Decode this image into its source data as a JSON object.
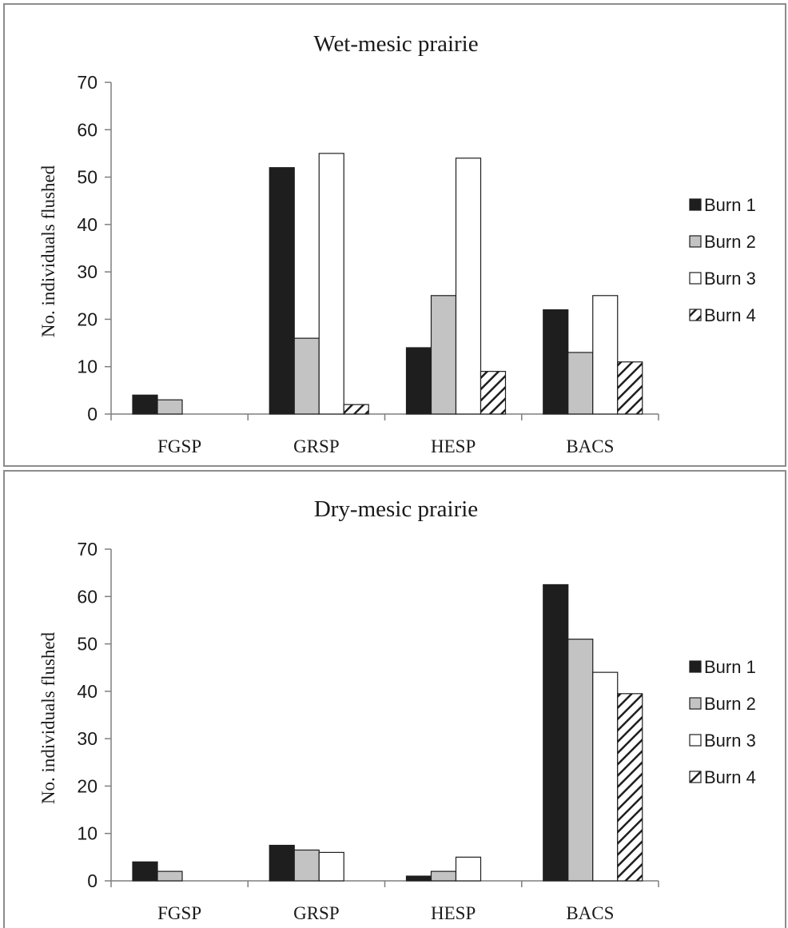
{
  "chart_data": [
    {
      "type": "bar",
      "title": "Wet-mesic prairie",
      "ylabel": "No. individuals flushed",
      "xlabel": "",
      "ylim": [
        0,
        70
      ],
      "yticks": [
        0,
        10,
        20,
        30,
        40,
        50,
        60,
        70
      ],
      "categories": [
        "FGSP",
        "GRSP",
        "HESP",
        "BACS"
      ],
      "series": [
        {
          "name": "Burn 1",
          "fill": "#1e1e1e",
          "pattern": "solid",
          "values": [
            4,
            52,
            14,
            22
          ]
        },
        {
          "name": "Burn 2",
          "fill": "#c3c3c3",
          "pattern": "solid",
          "values": [
            3,
            16,
            25,
            13
          ]
        },
        {
          "name": "Burn 3",
          "fill": "#ffffff",
          "pattern": "solid",
          "values": [
            0,
            55,
            54,
            25
          ]
        },
        {
          "name": "Burn 4",
          "fill": "#ffffff",
          "pattern": "diagonal-hatch",
          "values": [
            0,
            2,
            9,
            11
          ]
        }
      ],
      "legend_position": "right",
      "grid": false
    },
    {
      "type": "bar",
      "title": "Dry-mesic prairie",
      "ylabel": "No. individuals flushed",
      "xlabel": "",
      "ylim": [
        0,
        70
      ],
      "yticks": [
        0,
        10,
        20,
        30,
        40,
        50,
        60,
        70
      ],
      "categories": [
        "FGSP",
        "GRSP",
        "HESP",
        "BACS"
      ],
      "series": [
        {
          "name": "Burn 1",
          "fill": "#1e1e1e",
          "pattern": "solid",
          "values": [
            4,
            7.5,
            1,
            62.5
          ]
        },
        {
          "name": "Burn 2",
          "fill": "#c3c3c3",
          "pattern": "solid",
          "values": [
            2,
            6.5,
            2,
            51
          ]
        },
        {
          "name": "Burn 3",
          "fill": "#ffffff",
          "pattern": "solid",
          "values": [
            0,
            6,
            5,
            44
          ]
        },
        {
          "name": "Burn 4",
          "fill": "#ffffff",
          "pattern": "diagonal-hatch",
          "values": [
            0,
            0,
            0,
            39.5
          ]
        }
      ],
      "legend_position": "right",
      "grid": false
    }
  ]
}
